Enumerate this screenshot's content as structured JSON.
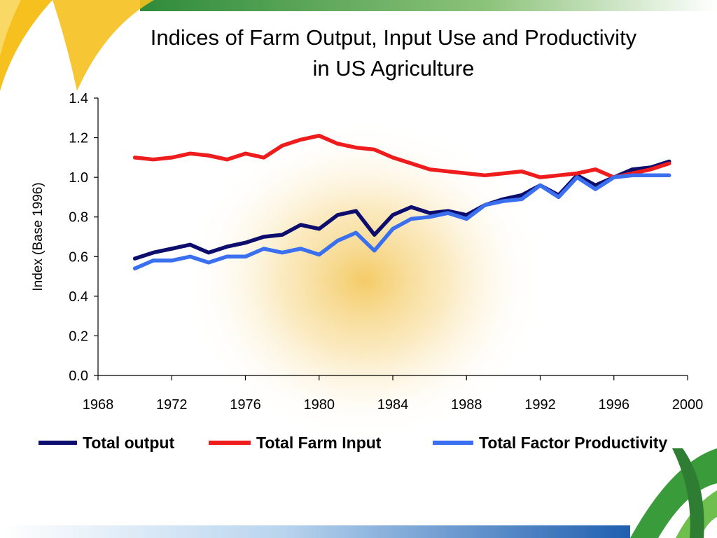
{
  "slide": {
    "title_line1": "Indices of Farm Output, Input Use and Productivity",
    "title_line2": "in US Agriculture"
  },
  "chart_data": {
    "type": "line",
    "title": "Indices of Farm Output, Input Use and Productivity in US Agriculture",
    "xlabel": "",
    "ylabel": "Index (Base 1996)",
    "xlim": [
      1968,
      2000
    ],
    "ylim": [
      0,
      1.4
    ],
    "x_ticks": [
      "1968",
      "1972",
      "1976",
      "1980",
      "1984",
      "1988",
      "1992",
      "1996",
      "2000"
    ],
    "y_ticks": [
      "0.0",
      "0.2",
      "0.4",
      "0.6",
      "0.8",
      "1.0",
      "1.2",
      "1.4"
    ],
    "grid": false,
    "legend_position": "bottom",
    "x": [
      1970,
      1971,
      1972,
      1973,
      1974,
      1975,
      1976,
      1977,
      1978,
      1979,
      1980,
      1981,
      1982,
      1983,
      1984,
      1985,
      1986,
      1987,
      1988,
      1989,
      1990,
      1991,
      1992,
      1993,
      1994,
      1995,
      1996,
      1997,
      1998,
      1999
    ],
    "series": [
      {
        "name": "Total output",
        "color": "#0d0d6e",
        "values": [
          0.59,
          0.62,
          0.64,
          0.66,
          0.62,
          0.65,
          0.67,
          0.7,
          0.71,
          0.76,
          0.74,
          0.81,
          0.83,
          0.71,
          0.81,
          0.85,
          0.82,
          0.83,
          0.81,
          0.86,
          0.89,
          0.91,
          0.96,
          0.91,
          1.01,
          0.96,
          1.0,
          1.04,
          1.05,
          1.08
        ]
      },
      {
        "name": "Total Farm Input",
        "color": "#ee1c1c",
        "values": [
          1.1,
          1.09,
          1.1,
          1.12,
          1.11,
          1.09,
          1.12,
          1.1,
          1.16,
          1.19,
          1.21,
          1.17,
          1.15,
          1.14,
          1.1,
          1.07,
          1.04,
          1.03,
          1.02,
          1.01,
          1.02,
          1.03,
          1.0,
          1.01,
          1.02,
          1.04,
          1.0,
          1.02,
          1.04,
          1.07
        ]
      },
      {
        "name": "Total Factor Productivity",
        "color": "#3a6ff0",
        "values": [
          0.54,
          0.58,
          0.58,
          0.6,
          0.57,
          0.6,
          0.6,
          0.64,
          0.62,
          0.64,
          0.61,
          0.68,
          0.72,
          0.63,
          0.74,
          0.79,
          0.8,
          0.82,
          0.79,
          0.86,
          0.88,
          0.89,
          0.96,
          0.9,
          1.0,
          0.94,
          1.0,
          1.01,
          1.01,
          1.01
        ]
      }
    ]
  }
}
